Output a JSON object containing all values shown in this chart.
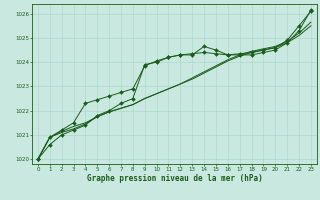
{
  "xlabel": "Graphe pression niveau de la mer (hPa)",
  "ylim": [
    1019.8,
    1026.4
  ],
  "xlim": [
    -0.5,
    23.5
  ],
  "yticks": [
    1020,
    1021,
    1022,
    1023,
    1024,
    1025,
    1026
  ],
  "xticks": [
    0,
    1,
    2,
    3,
    4,
    5,
    6,
    7,
    8,
    9,
    10,
    11,
    12,
    13,
    14,
    15,
    16,
    17,
    18,
    19,
    20,
    21,
    22,
    23
  ],
  "background_color": "#c8e8e0",
  "grid_color": "#b0d8d0",
  "line_color": "#1a5c1a",
  "line1_marked": [
    1020.0,
    1020.6,
    1021.0,
    1021.2,
    1021.4,
    1021.8,
    1022.0,
    1022.3,
    1022.5,
    1023.9,
    1024.0,
    1024.2,
    1024.3,
    1024.3,
    1024.65,
    1024.5,
    1024.3,
    1024.3,
    1024.3,
    1024.4,
    1024.5,
    1024.8,
    1025.3,
    1026.15
  ],
  "line2": [
    1020.0,
    1020.9,
    1021.1,
    1021.25,
    1021.45,
    1021.75,
    1021.95,
    1022.1,
    1022.25,
    1022.5,
    1022.7,
    1022.9,
    1023.1,
    1023.35,
    1023.6,
    1023.85,
    1024.1,
    1024.3,
    1024.45,
    1024.55,
    1024.65,
    1024.85,
    1025.2,
    1025.65
  ],
  "line3": [
    1020.0,
    1020.9,
    1021.15,
    1021.35,
    1021.5,
    1021.75,
    1021.95,
    1022.1,
    1022.25,
    1022.5,
    1022.7,
    1022.9,
    1023.1,
    1023.3,
    1023.55,
    1023.8,
    1024.05,
    1024.25,
    1024.4,
    1024.5,
    1024.6,
    1024.8,
    1025.1,
    1025.5
  ],
  "line4_marked": [
    1020.0,
    1020.9,
    1021.2,
    1021.5,
    1022.3,
    1022.45,
    1022.6,
    1022.75,
    1022.9,
    1023.85,
    1024.05,
    1024.2,
    1024.3,
    1024.35,
    1024.4,
    1024.35,
    1024.3,
    1024.35,
    1024.4,
    1024.5,
    1024.6,
    1024.9,
    1025.5,
    1026.1
  ]
}
